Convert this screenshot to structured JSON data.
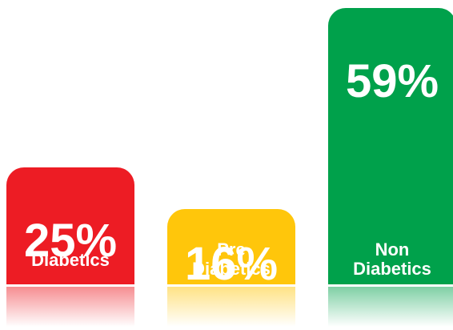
{
  "chart_data": {
    "type": "bar",
    "categories": [
      "Diabetics",
      "Pre Diabetics",
      "Non Diabetics"
    ],
    "values": [
      25,
      16,
      59
    ],
    "value_labels": [
      "25%",
      "16%",
      "59%"
    ],
    "category_label_lines": [
      [
        "Diabetics"
      ],
      [
        "Pre",
        "Diabetics"
      ],
      [
        "Non",
        "Diabetics"
      ]
    ],
    "colors": [
      "#ed1c24",
      "#ffc60b",
      "#00a14b"
    ],
    "title": "",
    "xlabel": "",
    "ylabel": "",
    "ylim": [
      0,
      60
    ],
    "grid": false,
    "legend": "none"
  }
}
